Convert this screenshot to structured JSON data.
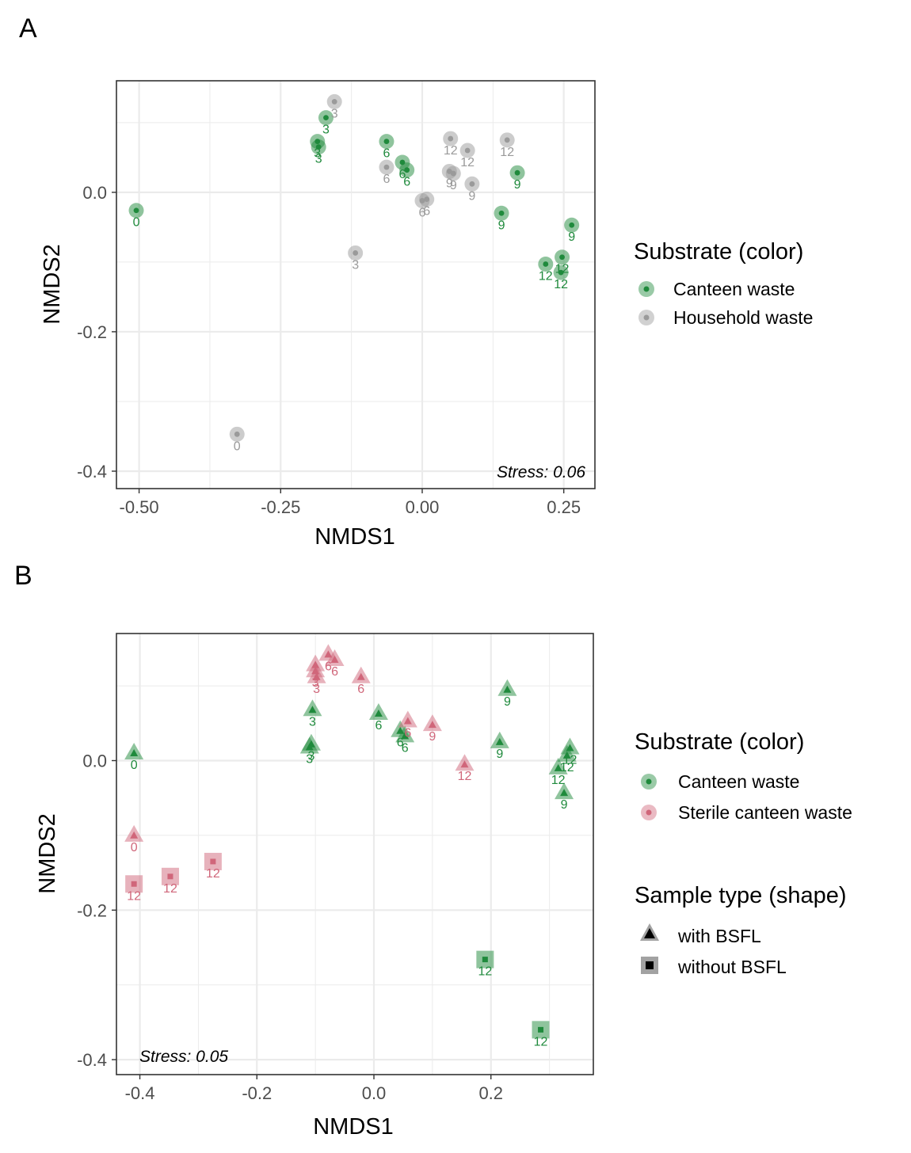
{
  "colors": {
    "canteen": "#1f8a3c",
    "household": "#9a9a9a",
    "sterile": "#d0667a",
    "grid": "#ebebeb",
    "panel_border": "#333333"
  },
  "chart_data": [
    {
      "panel": "A",
      "type": "scatter",
      "xlabel": "NMDS1",
      "ylabel": "NMDS2",
      "xlim": [
        -0.54,
        0.305
      ],
      "ylim": [
        -0.425,
        0.16
      ],
      "xticks": [
        -0.5,
        -0.25,
        0.0,
        0.25
      ],
      "xtick_labels": [
        "-0.50",
        "-0.25",
        "0.00",
        "0.25"
      ],
      "yticks": [
        -0.4,
        -0.2,
        0.0
      ],
      "ytick_labels": [
        "-0.4",
        "-0.2",
        "0.0"
      ],
      "grid": true,
      "stress": "Stress: 0.06",
      "legend": {
        "placement": "right",
        "title": "Substrate (color)",
        "entries": [
          {
            "label": "Canteen waste",
            "series": "canteen"
          },
          {
            "label": "Household waste",
            "series": "household"
          }
        ]
      },
      "series": [
        {
          "key": "canteen",
          "shape": "circle",
          "points": [
            {
              "x": -0.505,
              "y": -0.026,
              "label": "0"
            },
            {
              "x": -0.17,
              "y": 0.107,
              "label": "3"
            },
            {
              "x": -0.185,
              "y": 0.073,
              "label": "3"
            },
            {
              "x": -0.183,
              "y": 0.065,
              "label": "3"
            },
            {
              "x": -0.063,
              "y": 0.073,
              "label": "6"
            },
            {
              "x": -0.035,
              "y": 0.043,
              "label": "6"
            },
            {
              "x": -0.027,
              "y": 0.032,
              "label": "6"
            },
            {
              "x": 0.168,
              "y": 0.028,
              "label": "9"
            },
            {
              "x": 0.14,
              "y": -0.03,
              "label": "9"
            },
            {
              "x": 0.264,
              "y": -0.047,
              "label": "9"
            },
            {
              "x": 0.218,
              "y": -0.103,
              "label": "12"
            },
            {
              "x": 0.247,
              "y": -0.093,
              "label": "12"
            },
            {
              "x": 0.245,
              "y": -0.115,
              "label": "12"
            }
          ]
        },
        {
          "key": "household",
          "shape": "circle",
          "points": [
            {
              "x": -0.327,
              "y": -0.347,
              "label": "0"
            },
            {
              "x": -0.155,
              "y": 0.13,
              "label": "3"
            },
            {
              "x": -0.118,
              "y": -0.087,
              "label": "3"
            },
            {
              "x": -0.063,
              "y": 0.036,
              "label": "6"
            },
            {
              "x": 0.0,
              "y": -0.012,
              "label": "6"
            },
            {
              "x": 0.008,
              "y": -0.01,
              "label": "6"
            },
            {
              "x": 0.05,
              "y": 0.077,
              "label": "12"
            },
            {
              "x": 0.08,
              "y": 0.06,
              "label": "12"
            },
            {
              "x": 0.15,
              "y": 0.075,
              "label": "12"
            },
            {
              "x": 0.048,
              "y": 0.03,
              "label": "9"
            },
            {
              "x": 0.055,
              "y": 0.027,
              "label": "9"
            },
            {
              "x": 0.088,
              "y": 0.012,
              "label": "9"
            }
          ]
        }
      ]
    },
    {
      "panel": "B",
      "type": "scatter",
      "xlabel": "NMDS1",
      "ylabel": "NMDS2",
      "xlim": [
        -0.44,
        0.375
      ],
      "ylim": [
        -0.42,
        0.17
      ],
      "xticks": [
        -0.4,
        -0.2,
        0.0,
        0.2
      ],
      "xtick_labels": [
        "-0.4",
        "-0.2",
        "0.0",
        "0.2"
      ],
      "yticks": [
        -0.4,
        -0.2,
        0.0
      ],
      "ytick_labels": [
        "-0.4",
        "-0.2",
        "0.0"
      ],
      "grid": true,
      "stress": "Stress: 0.05",
      "legend": {
        "placement": "right",
        "title": "Substrate (color)",
        "entries": [
          {
            "label": "Canteen waste",
            "series": "canteen"
          },
          {
            "label": "Sterile canteen waste",
            "series": "sterile"
          }
        ],
        "shape_title": "Sample type (shape)",
        "shape_entries": [
          {
            "label": "with BSFL",
            "shape": "triangle"
          },
          {
            "label": "without BSFL",
            "shape": "square"
          }
        ]
      },
      "series": [
        {
          "key": "canteen",
          "points": [
            {
              "x": -0.41,
              "y": 0.01,
              "label": "0",
              "shape": "triangle"
            },
            {
              "x": -0.105,
              "y": 0.068,
              "label": "3",
              "shape": "triangle"
            },
            {
              "x": -0.107,
              "y": 0.022,
              "label": "3",
              "shape": "triangle"
            },
            {
              "x": -0.11,
              "y": 0.018,
              "label": "3",
              "shape": "triangle"
            },
            {
              "x": 0.008,
              "y": 0.063,
              "label": "6",
              "shape": "triangle"
            },
            {
              "x": 0.045,
              "y": 0.04,
              "label": "6",
              "shape": "triangle"
            },
            {
              "x": 0.053,
              "y": 0.033,
              "label": "6",
              "shape": "triangle"
            },
            {
              "x": 0.228,
              "y": 0.095,
              "label": "9",
              "shape": "triangle"
            },
            {
              "x": 0.215,
              "y": 0.025,
              "label": "9",
              "shape": "triangle"
            },
            {
              "x": 0.325,
              "y": -0.043,
              "label": "9",
              "shape": "triangle"
            },
            {
              "x": 0.335,
              "y": 0.017,
              "label": "12",
              "shape": "triangle"
            },
            {
              "x": 0.33,
              "y": 0.007,
              "label": "12",
              "shape": "triangle"
            },
            {
              "x": 0.315,
              "y": -0.01,
              "label": "12",
              "shape": "triangle"
            },
            {
              "x": 0.19,
              "y": -0.266,
              "label": "12",
              "shape": "square"
            },
            {
              "x": 0.285,
              "y": -0.36,
              "label": "12",
              "shape": "square"
            }
          ]
        },
        {
          "key": "sterile",
          "points": [
            {
              "x": -0.41,
              "y": -0.1,
              "label": "0",
              "shape": "triangle"
            },
            {
              "x": -0.1,
              "y": 0.128,
              "label": "3",
              "shape": "triangle"
            },
            {
              "x": -0.1,
              "y": 0.12,
              "label": "3",
              "shape": "triangle"
            },
            {
              "x": -0.098,
              "y": 0.112,
              "label": "3",
              "shape": "triangle"
            },
            {
              "x": -0.078,
              "y": 0.142,
              "label": "6",
              "shape": "triangle"
            },
            {
              "x": -0.067,
              "y": 0.135,
              "label": "6",
              "shape": "triangle"
            },
            {
              "x": -0.022,
              "y": 0.112,
              "label": "6",
              "shape": "triangle"
            },
            {
              "x": 0.058,
              "y": 0.053,
              "label": "6",
              "shape": "triangle"
            },
            {
              "x": 0.1,
              "y": 0.048,
              "label": "9",
              "shape": "triangle"
            },
            {
              "x": 0.155,
              "y": -0.005,
              "label": "12",
              "shape": "triangle"
            },
            {
              "x": -0.41,
              "y": -0.165,
              "label": "12",
              "shape": "square"
            },
            {
              "x": -0.348,
              "y": -0.155,
              "label": "12",
              "shape": "square"
            },
            {
              "x": -0.275,
              "y": -0.135,
              "label": "12",
              "shape": "square"
            }
          ]
        }
      ]
    }
  ]
}
